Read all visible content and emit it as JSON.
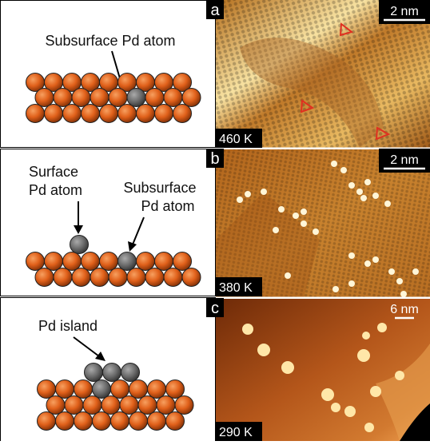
{
  "panels": [
    {
      "label": "a",
      "temperature": "460 K",
      "scale_bar": "2 nm",
      "annotations": [
        {
          "lines": [
            "Subsurface Pd atom"
          ]
        }
      ]
    },
    {
      "label": "b",
      "temperature": "380 K",
      "scale_bar": "2 nm",
      "annotations": [
        {
          "lines": [
            "Surface",
            "Pd atom"
          ]
        },
        {
          "lines": [
            "Subsurface",
            "Pd atom"
          ]
        }
      ]
    },
    {
      "label": "c",
      "temperature": "290 K",
      "scale_bar": "6 nm",
      "annotations": [
        {
          "lines": [
            "Pd island"
          ]
        }
      ]
    }
  ]
}
